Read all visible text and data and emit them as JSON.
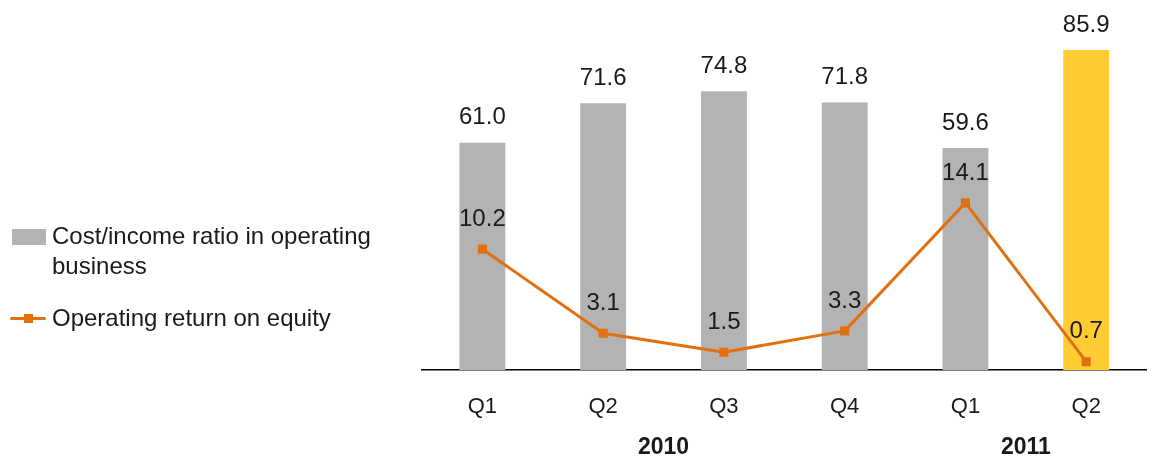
{
  "chart_data": {
    "type": "bar",
    "categories": [
      "Q1",
      "Q2",
      "Q3",
      "Q4",
      "Q1",
      "Q2"
    ],
    "series": [
      {
        "name": "Cost/income ratio in operating business",
        "color": "#b3b3b3",
        "colors": [
          "#b3b3b3",
          "#b3b3b3",
          "#b3b3b3",
          "#b3b3b3",
          "#b3b3b3",
          "#ffcc33"
        ],
        "values": [
          61.0,
          71.6,
          74.8,
          71.8,
          59.6,
          85.9
        ],
        "value_labels": [
          "61.0",
          "71.6",
          "74.8",
          "71.8",
          "59.6",
          "85.9"
        ]
      },
      {
        "name": "Operating return on equity",
        "type": "line",
        "color": "#e07010",
        "axis": "y2",
        "marker": "square",
        "values": [
          10.2,
          3.1,
          1.5,
          3.3,
          14.1,
          0.7
        ],
        "value_labels": [
          "10.2",
          "3.1",
          "1.5",
          "3.3",
          "14.1",
          "0.7"
        ]
      }
    ],
    "ylim": [
      0,
      85.9
    ],
    "y2lim": [
      0,
      27
    ],
    "tick_labels": "x",
    "legend": "left",
    "annotations": [
      "2010",
      "2011"
    ]
  }
}
